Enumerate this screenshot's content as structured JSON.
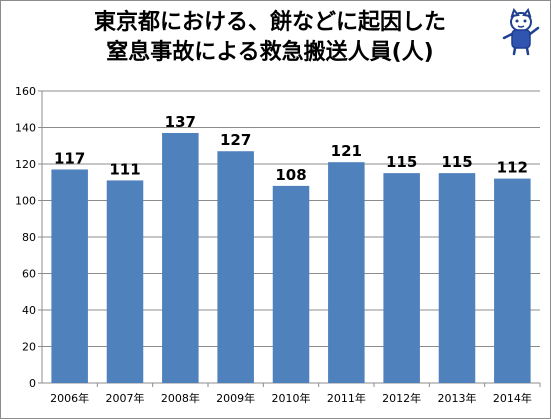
{
  "title": {
    "line1": "東京都における、餅などに起因した",
    "line2": "窒息事故による救急搬送人員(人)"
  },
  "mascot_icon": "cat-mascot-icon",
  "colors": {
    "bar": "#4f81bd",
    "grid": "#8c8c8c",
    "axis": "#8c8c8c"
  },
  "chart_data": {
    "type": "bar",
    "title": "東京都における、餅などに起因した窒息事故による救急搬送人員(人)",
    "categories": [
      "2006年",
      "2007年",
      "2008年",
      "2009年",
      "2010年",
      "2011年",
      "2012年",
      "2013年",
      "2014年"
    ],
    "values": [
      117,
      111,
      137,
      127,
      108,
      121,
      115,
      115,
      112
    ],
    "xlabel": "",
    "ylabel": "",
    "ylim": [
      0,
      160
    ],
    "yticks": [
      0,
      20,
      40,
      60,
      80,
      100,
      120,
      140,
      160
    ],
    "grid": true,
    "legend": "none"
  }
}
